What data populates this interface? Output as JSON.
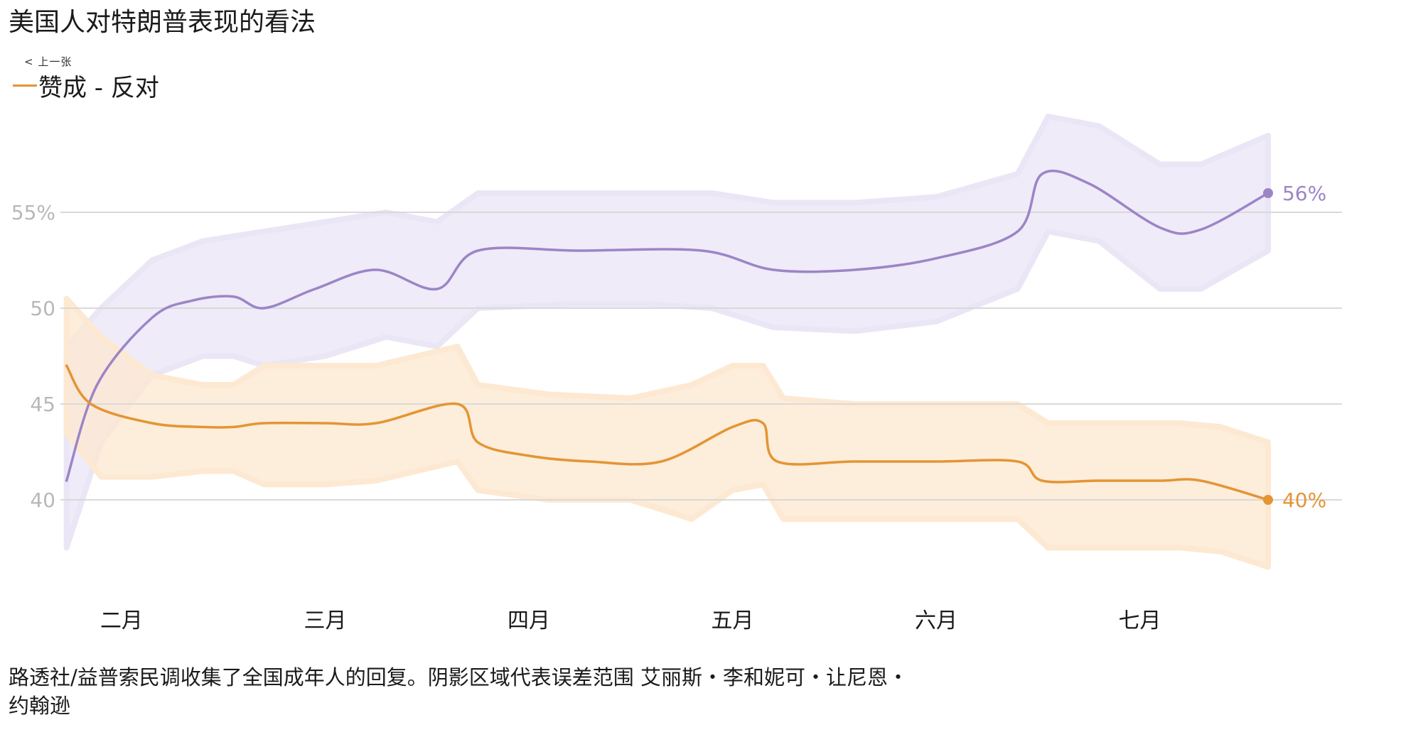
{
  "title": "美国人对特朗普表现的看法",
  "legend_top": "< 上一张",
  "legend_label": "赞成 - 反对",
  "caption": "路透社/益普索民调收集了全国成年人的回复。阴影区域代表误差范围 艾丽斯・李和妮可・让尼恩・约翰逊",
  "colors": {
    "approve": "#e39534",
    "disapprove": "#9b85c6",
    "approve_band": "#fde9d2",
    "disapprove_band": "#ebe6f6",
    "grid": "#d9d9d9",
    "tick": "#b8b8b8"
  },
  "chart_data": {
    "type": "line",
    "title": "美国人对特朗普表现的看法",
    "xlabel": "",
    "ylabel": "",
    "x_ticks": [
      "二月",
      "三月",
      "四月",
      "五月",
      "六月",
      "七月"
    ],
    "x_tick_positions": [
      1.3,
      2.3,
      3.3,
      4.3,
      5.3,
      6.3
    ],
    "y_ticks": [
      {
        "value": 40,
        "label": "40"
      },
      {
        "value": 45,
        "label": "45"
      },
      {
        "value": 50,
        "label": "50"
      },
      {
        "value": 55,
        "label": "55%"
      }
    ],
    "ylim": [
      35,
      62
    ],
    "xlim": [
      1.0,
      7.3
    ],
    "grid": true,
    "series": [
      {
        "key": "disapprove",
        "end_label": "56%",
        "points": [
          [
            1.03,
            41
          ],
          [
            1.18,
            46
          ],
          [
            1.45,
            49.5
          ],
          [
            1.65,
            50.4
          ],
          [
            1.85,
            50.6
          ],
          [
            2.0,
            50
          ],
          [
            2.25,
            51
          ],
          [
            2.55,
            52
          ],
          [
            2.85,
            51
          ],
          [
            3.05,
            53
          ],
          [
            3.55,
            53
          ],
          [
            4.15,
            53
          ],
          [
            4.5,
            52
          ],
          [
            4.9,
            52
          ],
          [
            5.3,
            52.6
          ],
          [
            5.7,
            54
          ],
          [
            5.82,
            57
          ],
          [
            6.05,
            56.5
          ],
          [
            6.4,
            54.2
          ],
          [
            6.6,
            54.1
          ],
          [
            6.93,
            56
          ]
        ],
        "band_upper": [
          [
            1.03,
            48
          ],
          [
            1.2,
            50
          ],
          [
            1.45,
            52.5
          ],
          [
            1.7,
            53.5
          ],
          [
            2.0,
            54
          ],
          [
            2.3,
            54.5
          ],
          [
            2.6,
            55
          ],
          [
            2.85,
            54.5
          ],
          [
            3.05,
            56
          ],
          [
            3.5,
            56
          ],
          [
            3.9,
            56
          ],
          [
            4.2,
            56
          ],
          [
            4.5,
            55.5
          ],
          [
            4.9,
            55.5
          ],
          [
            5.3,
            55.8
          ],
          [
            5.7,
            57
          ],
          [
            5.85,
            60
          ],
          [
            6.1,
            59.5
          ],
          [
            6.4,
            57.5
          ],
          [
            6.6,
            57.5
          ],
          [
            6.93,
            59
          ]
        ],
        "band_lower": [
          [
            1.03,
            37.5
          ],
          [
            1.2,
            43
          ],
          [
            1.45,
            46.5
          ],
          [
            1.7,
            47.5
          ],
          [
            1.85,
            47.5
          ],
          [
            2.0,
            47
          ],
          [
            2.3,
            47.5
          ],
          [
            2.6,
            48.5
          ],
          [
            2.85,
            48
          ],
          [
            3.05,
            50
          ],
          [
            3.5,
            50.2
          ],
          [
            3.9,
            50.2
          ],
          [
            4.2,
            50
          ],
          [
            4.5,
            49
          ],
          [
            4.9,
            48.8
          ],
          [
            5.3,
            49.3
          ],
          [
            5.7,
            51
          ],
          [
            5.85,
            54
          ],
          [
            6.1,
            53.5
          ],
          [
            6.4,
            51
          ],
          [
            6.6,
            51
          ],
          [
            6.93,
            53
          ]
        ]
      },
      {
        "key": "approve",
        "end_label": "40%",
        "points": [
          [
            1.03,
            47
          ],
          [
            1.15,
            45
          ],
          [
            1.45,
            44
          ],
          [
            1.7,
            43.8
          ],
          [
            1.85,
            43.8
          ],
          [
            2.0,
            44
          ],
          [
            2.3,
            44
          ],
          [
            2.55,
            44
          ],
          [
            2.95,
            45
          ],
          [
            3.05,
            43
          ],
          [
            3.3,
            42.3
          ],
          [
            3.6,
            42
          ],
          [
            3.95,
            42
          ],
          [
            4.3,
            43.8
          ],
          [
            4.45,
            44
          ],
          [
            4.52,
            42
          ],
          [
            4.9,
            42
          ],
          [
            5.3,
            42
          ],
          [
            5.7,
            42
          ],
          [
            5.82,
            41
          ],
          [
            6.1,
            41
          ],
          [
            6.4,
            41
          ],
          [
            6.6,
            41
          ],
          [
            6.93,
            40
          ]
        ],
        "band_upper": [
          [
            1.03,
            50.5
          ],
          [
            1.2,
            48.5
          ],
          [
            1.45,
            46.5
          ],
          [
            1.7,
            46
          ],
          [
            1.85,
            46
          ],
          [
            2.0,
            47
          ],
          [
            2.3,
            47
          ],
          [
            2.55,
            47
          ],
          [
            2.95,
            48
          ],
          [
            3.05,
            46
          ],
          [
            3.4,
            45.5
          ],
          [
            3.8,
            45.3
          ],
          [
            4.1,
            46
          ],
          [
            4.3,
            47
          ],
          [
            4.45,
            47
          ],
          [
            4.55,
            45.3
          ],
          [
            4.9,
            45
          ],
          [
            5.3,
            45
          ],
          [
            5.7,
            45
          ],
          [
            5.85,
            44
          ],
          [
            6.2,
            44
          ],
          [
            6.5,
            44
          ],
          [
            6.7,
            43.8
          ],
          [
            6.93,
            43
          ]
        ],
        "band_lower": [
          [
            1.03,
            43.5
          ],
          [
            1.2,
            41.2
          ],
          [
            1.45,
            41.2
          ],
          [
            1.7,
            41.5
          ],
          [
            1.85,
            41.5
          ],
          [
            2.0,
            40.8
          ],
          [
            2.3,
            40.8
          ],
          [
            2.55,
            41
          ],
          [
            2.95,
            42
          ],
          [
            3.05,
            40.5
          ],
          [
            3.4,
            40
          ],
          [
            3.8,
            40
          ],
          [
            4.1,
            39
          ],
          [
            4.3,
            40.5
          ],
          [
            4.45,
            40.8
          ],
          [
            4.55,
            39
          ],
          [
            4.9,
            39
          ],
          [
            5.3,
            39
          ],
          [
            5.7,
            39
          ],
          [
            5.85,
            37.5
          ],
          [
            6.2,
            37.5
          ],
          [
            6.5,
            37.5
          ],
          [
            6.7,
            37.3
          ],
          [
            6.93,
            36.5
          ]
        ]
      }
    ]
  }
}
